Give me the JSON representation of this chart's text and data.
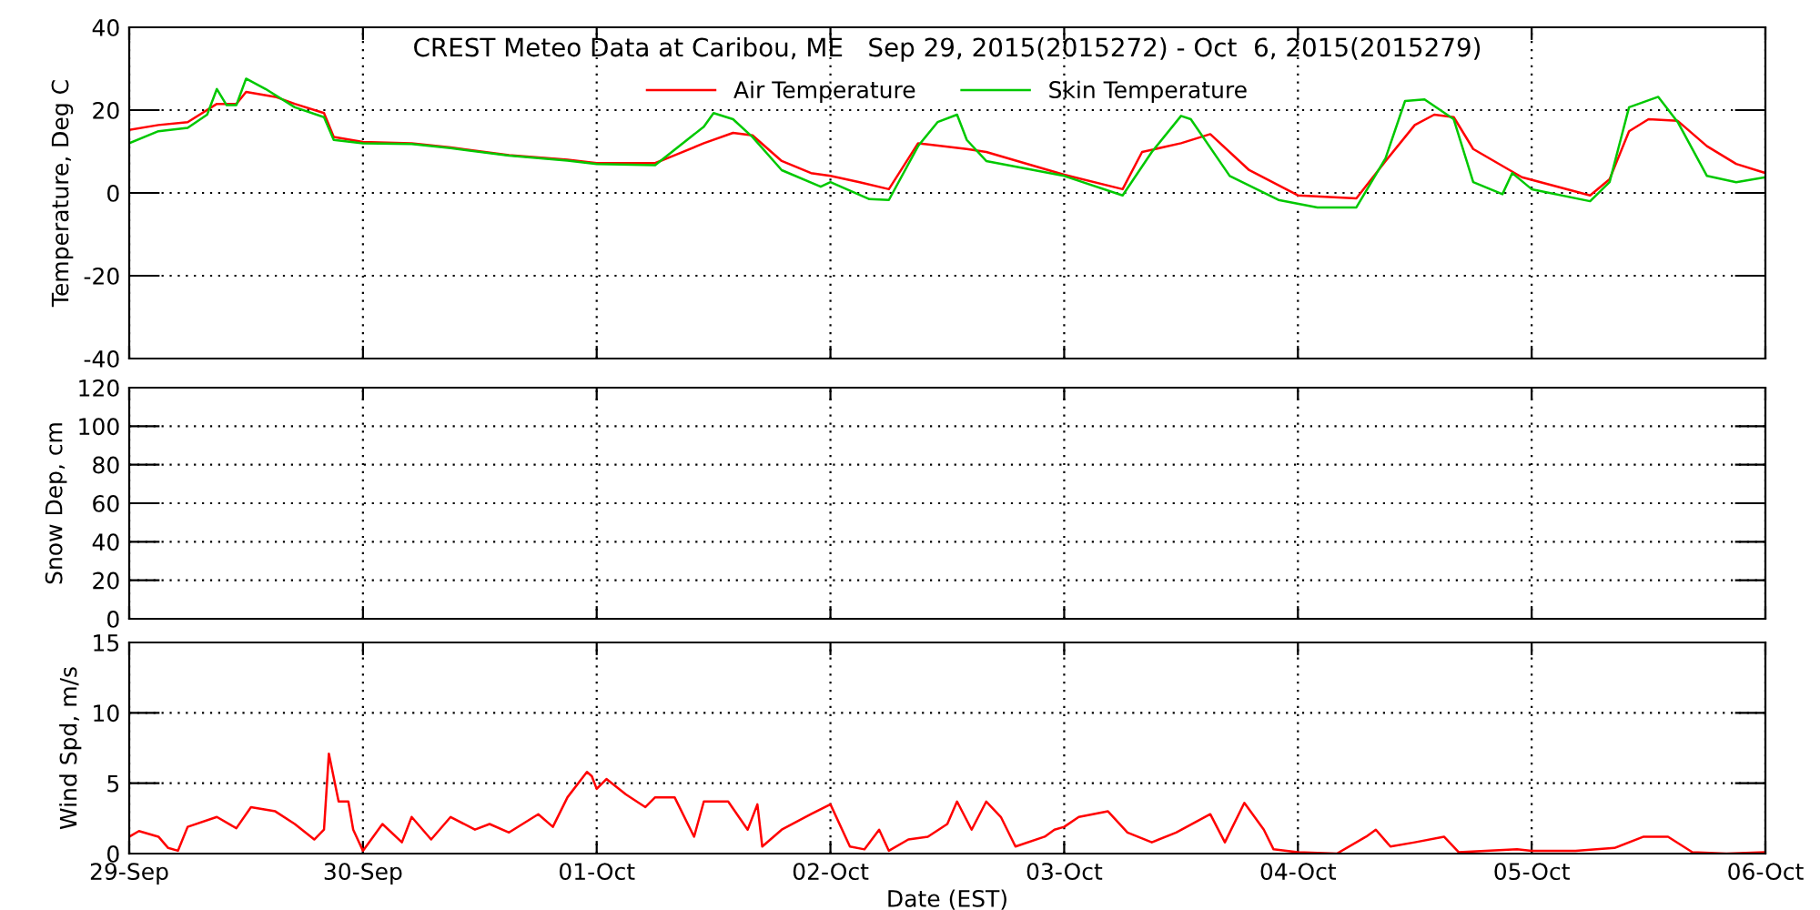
{
  "chart_data": [
    {
      "type": "line",
      "title": "CREST Meteo Data at Caribou, ME   Sep 29, 2015(2015272) - Oct  6, 2015(2015279)",
      "ylabel": "Temperature, Deg C",
      "legend": "top",
      "grid": true,
      "tick_labels": "y",
      "xlim": [
        "2015-09-29",
        "2015-10-06"
      ],
      "xticks": [
        {
          "value": "2015-09-29",
          "label": null
        },
        {
          "value": "2015-09-30",
          "label": null
        },
        {
          "value": "2015-10-01",
          "label": null
        },
        {
          "value": "2015-10-02",
          "label": null
        },
        {
          "value": "2015-10-03",
          "label": null
        },
        {
          "value": "2015-10-04",
          "label": null
        },
        {
          "value": "2015-10-05",
          "label": null
        },
        {
          "value": "2015-10-06",
          "label": null
        }
      ],
      "ylim": [
        -40,
        40
      ],
      "yticks": [
        -40,
        -20,
        0,
        20,
        40
      ],
      "series": [
        {
          "name": "Air Temperature",
          "color": "#ff0000",
          "x": [
            "2015-09-29T00:00",
            "2015-09-29T03:00",
            "2015-09-29T06:00",
            "2015-09-29T09:00",
            "2015-09-29T11:00",
            "2015-09-29T12:00",
            "2015-09-29T15:00",
            "2015-09-29T17:00",
            "2015-09-29T20:00",
            "2015-09-29T21:00",
            "2015-09-30T00:00",
            "2015-09-30T05:00",
            "2015-09-30T09:00",
            "2015-09-30T15:00",
            "2015-09-30T21:00",
            "2015-10-01T00:00",
            "2015-10-01T06:00",
            "2015-10-01T08:00",
            "2015-10-01T11:00",
            "2015-10-01T14:00",
            "2015-10-01T16:00",
            "2015-10-01T19:00",
            "2015-10-01T22:00",
            "2015-10-02T00:00",
            "2015-10-02T03:00",
            "2015-10-02T06:00",
            "2015-10-02T09:00",
            "2015-10-02T14:00",
            "2015-10-02T16:00",
            "2015-10-03T00:00",
            "2015-10-03T06:00",
            "2015-10-03T08:00",
            "2015-10-03T12:00",
            "2015-10-03T15:00",
            "2015-10-03T19:00",
            "2015-10-04T00:00",
            "2015-10-04T06:00",
            "2015-10-04T09:00",
            "2015-10-04T12:00",
            "2015-10-04T14:00",
            "2015-10-04T16:00",
            "2015-10-04T18:00",
            "2015-10-04T23:00",
            "2015-10-05T06:00",
            "2015-10-05T08:00",
            "2015-10-05T10:00",
            "2015-10-05T12:00",
            "2015-10-05T15:00",
            "2015-10-05T18:00",
            "2015-10-05T21:00",
            "2015-10-06T00:00"
          ],
          "values": [
            15.2,
            16.4,
            17.1,
            21.5,
            21.5,
            24.4,
            23.2,
            21.5,
            19.3,
            13.5,
            12.3,
            12.0,
            11.0,
            9.1,
            8.0,
            7.2,
            7.2,
            9.1,
            12.0,
            14.5,
            13.9,
            7.7,
            4.8,
            4.1,
            2.6,
            0.9,
            12.0,
            10.6,
            9.9,
            4.4,
            0.9,
            9.9,
            12.0,
            14.2,
            5.5,
            -0.6,
            -1.3,
            7.7,
            16.4,
            18.9,
            18.3,
            10.6,
            3.8,
            -0.6,
            3.3,
            14.9,
            17.8,
            17.4,
            11.3,
            7.0,
            4.8
          ]
        },
        {
          "name": "Skin Temperature",
          "color": "#00c800",
          "x": [
            "2015-09-29T00:00",
            "2015-09-29T03:00",
            "2015-09-29T06:00",
            "2015-09-29T08:00",
            "2015-09-29T09:00",
            "2015-09-29T10:00",
            "2015-09-29T11:00",
            "2015-09-29T12:00",
            "2015-09-29T14:00",
            "2015-09-29T17:00",
            "2015-09-29T20:00",
            "2015-09-29T21:00",
            "2015-09-30T00:00",
            "2015-09-30T05:00",
            "2015-09-30T09:00",
            "2015-09-30T15:00",
            "2015-09-30T21:00",
            "2015-10-01T00:00",
            "2015-10-01T06:00",
            "2015-10-01T11:00",
            "2015-10-01T12:00",
            "2015-10-01T14:00",
            "2015-10-01T16:00",
            "2015-10-01T19:00",
            "2015-10-01T23:00",
            "2015-10-02T00:00",
            "2015-10-02T04:00",
            "2015-10-02T06:00",
            "2015-10-02T09:00",
            "2015-10-02T11:00",
            "2015-10-02T13:00",
            "2015-10-02T14:00",
            "2015-10-02T16:00",
            "2015-10-03T00:00",
            "2015-10-03T06:00",
            "2015-10-03T09:00",
            "2015-10-03T12:00",
            "2015-10-03T13:00",
            "2015-10-03T17:00",
            "2015-10-03T22:00",
            "2015-10-04T02:00",
            "2015-10-04T06:00",
            "2015-10-04T09:00",
            "2015-10-04T11:00",
            "2015-10-04T13:00",
            "2015-10-04T16:00",
            "2015-10-04T18:00",
            "2015-10-04T21:00",
            "2015-10-04T22:00",
            "2015-10-05T00:00",
            "2015-10-05T06:00",
            "2015-10-05T08:00",
            "2015-10-05T10:00",
            "2015-10-05T13:00",
            "2015-10-05T15:00",
            "2015-10-05T18:00",
            "2015-10-05T21:00",
            "2015-10-06T00:00"
          ],
          "values": [
            12.0,
            14.9,
            15.7,
            18.9,
            25.1,
            21.2,
            21.2,
            27.6,
            25.1,
            20.7,
            18.3,
            12.8,
            12.0,
            11.8,
            10.8,
            9.0,
            7.8,
            7.0,
            6.7,
            16.0,
            19.3,
            17.8,
            13.5,
            5.5,
            1.5,
            2.6,
            -1.5,
            -1.7,
            11.3,
            17.1,
            18.9,
            12.8,
            7.7,
            4.1,
            -0.6,
            9.9,
            18.6,
            17.8,
            4.1,
            -1.7,
            -3.5,
            -3.5,
            8.4,
            22.2,
            22.6,
            17.8,
            2.6,
            -0.3,
            4.8,
            0.9,
            -2.0,
            2.6,
            20.7,
            23.2,
            17.1,
            4.1,
            2.6,
            3.8
          ]
        }
      ]
    },
    {
      "type": "line",
      "ylabel": "Snow Dep, cm",
      "grid": true,
      "tick_labels": "y",
      "xlim": [
        "2015-09-29",
        "2015-10-06"
      ],
      "xticks": [
        {
          "value": "2015-09-29",
          "label": null
        },
        {
          "value": "2015-09-30",
          "label": null
        },
        {
          "value": "2015-10-01",
          "label": null
        },
        {
          "value": "2015-10-02",
          "label": null
        },
        {
          "value": "2015-10-03",
          "label": null
        },
        {
          "value": "2015-10-04",
          "label": null
        },
        {
          "value": "2015-10-05",
          "label": null
        },
        {
          "value": "2015-10-06",
          "label": null
        }
      ],
      "ylim": [
        0,
        120
      ],
      "yticks": [
        0,
        20,
        40,
        60,
        80,
        100,
        120
      ]
    },
    {
      "type": "line",
      "ylabel": "Wind Spd, m/s",
      "xlabel": "Date (EST)",
      "grid": true,
      "xlim": [
        "2015-09-29",
        "2015-10-06"
      ],
      "xticks": [
        {
          "value": "2015-09-29",
          "label": "29-Sep"
        },
        {
          "value": "2015-09-30",
          "label": "30-Sep"
        },
        {
          "value": "2015-10-01",
          "label": "01-Oct"
        },
        {
          "value": "2015-10-02",
          "label": "02-Oct"
        },
        {
          "value": "2015-10-03",
          "label": "03-Oct"
        },
        {
          "value": "2015-10-04",
          "label": "04-Oct"
        },
        {
          "value": "2015-10-05",
          "label": "05-Oct"
        },
        {
          "value": "2015-10-06",
          "label": "06-Oct"
        }
      ],
      "ylim": [
        0,
        15
      ],
      "yticks": [
        0,
        5,
        10,
        15
      ],
      "series": [
        {
          "color": "#ff0000",
          "x": [
            "2015-09-29T00:00",
            "2015-09-29T01:00",
            "2015-09-29T03:00",
            "2015-09-29T04:00",
            "2015-09-29T05:00",
            "2015-09-29T06:00",
            "2015-09-29T09:00",
            "2015-09-29T11:00",
            "2015-09-29T12:30",
            "2015-09-29T15:00",
            "2015-09-29T17:00",
            "2015-09-29T19:00",
            "2015-09-29T20:00",
            "2015-09-29T20:30",
            "2015-09-29T21:30",
            "2015-09-29T22:30",
            "2015-09-29T23:00",
            "2015-09-30T00:00",
            "2015-09-30T02:00",
            "2015-09-30T04:00",
            "2015-09-30T05:00",
            "2015-09-30T07:00",
            "2015-09-30T09:00",
            "2015-09-30T11:30",
            "2015-09-30T13:00",
            "2015-09-30T15:00",
            "2015-09-30T18:00",
            "2015-09-30T19:30",
            "2015-09-30T21:00",
            "2015-09-30T23:00",
            "2015-09-30T23:30",
            "2015-10-01T00:00",
            "2015-10-01T01:00",
            "2015-10-01T03:00",
            "2015-10-01T05:00",
            "2015-10-01T06:00",
            "2015-10-01T08:00",
            "2015-10-01T10:00",
            "2015-10-01T11:00",
            "2015-10-01T13:30",
            "2015-10-01T15:30",
            "2015-10-01T16:30",
            "2015-10-01T17:00",
            "2015-10-01T19:00",
            "2015-10-01T22:00",
            "2015-10-02T00:00",
            "2015-10-02T02:00",
            "2015-10-02T03:30",
            "2015-10-02T05:00",
            "2015-10-02T06:00",
            "2015-10-02T08:00",
            "2015-10-02T10:00",
            "2015-10-02T12:00",
            "2015-10-02T13:00",
            "2015-10-02T14:30",
            "2015-10-02T16:00",
            "2015-10-02T17:30",
            "2015-10-02T19:00",
            "2015-10-02T22:00",
            "2015-10-02T23:00",
            "2015-10-03T00:00",
            "2015-10-03T01:30",
            "2015-10-03T04:30",
            "2015-10-03T06:30",
            "2015-10-03T09:00",
            "2015-10-03T11:30",
            "2015-10-03T15:00",
            "2015-10-03T16:30",
            "2015-10-03T18:30",
            "2015-10-03T20:30",
            "2015-10-03T21:30",
            "2015-10-04T00:00",
            "2015-10-04T04:00",
            "2015-10-04T07:00",
            "2015-10-04T08:00",
            "2015-10-04T09:30",
            "2015-10-04T12:00",
            "2015-10-04T15:00",
            "2015-10-04T16:30",
            "2015-10-04T22:30",
            "2015-10-05T00:00",
            "2015-10-05T04:30",
            "2015-10-05T08:30",
            "2015-10-05T11:30",
            "2015-10-05T14:00",
            "2015-10-05T16:30",
            "2015-10-05T20:00",
            "2015-10-06T00:00"
          ],
          "values": [
            1.2,
            1.6,
            1.2,
            0.4,
            0.2,
            1.9,
            2.6,
            1.8,
            3.3,
            3.0,
            2.1,
            1.0,
            1.7,
            7.1,
            3.7,
            3.7,
            1.7,
            0.2,
            2.1,
            0.8,
            2.6,
            1.0,
            2.6,
            1.7,
            2.1,
            1.5,
            2.8,
            1.9,
            4.0,
            5.8,
            5.5,
            4.6,
            5.3,
            4.2,
            3.3,
            4.0,
            4.0,
            1.2,
            3.7,
            3.7,
            1.7,
            3.5,
            0.5,
            1.7,
            2.8,
            3.5,
            0.5,
            0.3,
            1.7,
            0.2,
            1.0,
            1.2,
            2.1,
            3.7,
            1.7,
            3.7,
            2.6,
            0.5,
            1.2,
            1.7,
            1.9,
            2.6,
            3.0,
            1.5,
            0.8,
            1.5,
            2.8,
            0.8,
            3.6,
            1.7,
            0.3,
            0.1,
            0,
            1.2,
            1.7,
            0.5,
            0.8,
            1.2,
            0.1,
            0.3,
            0.2,
            0.2,
            0.4,
            1.2,
            1.2,
            0.1,
            0,
            0.1
          ]
        }
      ]
    }
  ]
}
